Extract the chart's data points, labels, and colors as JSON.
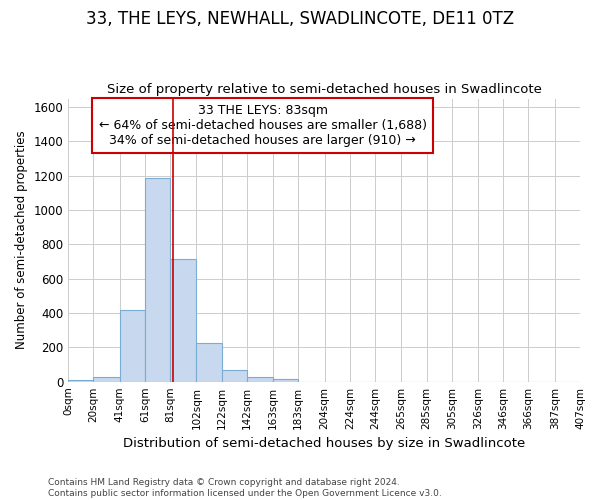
{
  "title": "33, THE LEYS, NEWHALL, SWADLINCOTE, DE11 0TZ",
  "subtitle": "Size of property relative to semi-detached houses in Swadlincote",
  "xlabel": "Distribution of semi-detached houses by size in Swadlincote",
  "ylabel": "Number of semi-detached properties",
  "footer_line1": "Contains HM Land Registry data © Crown copyright and database right 2024.",
  "footer_line2": "Contains public sector information licensed under the Open Government Licence v3.0.",
  "annotation_title": "33 THE LEYS: 83sqm",
  "annotation_line1": "← 64% of semi-detached houses are smaller (1,688)",
  "annotation_line2": "34% of semi-detached houses are larger (910) →",
  "bin_edges": [
    0,
    20,
    41,
    61,
    81,
    102,
    122,
    142,
    163,
    183,
    204,
    224,
    244,
    265,
    285,
    305,
    326,
    346,
    366,
    387,
    407
  ],
  "bin_labels": [
    "0sqm",
    "20sqm",
    "41sqm",
    "61sqm",
    "81sqm",
    "102sqm",
    "122sqm",
    "142sqm",
    "163sqm",
    "183sqm",
    "204sqm",
    "224sqm",
    "244sqm",
    "265sqm",
    "285sqm",
    "305sqm",
    "326sqm",
    "346sqm",
    "366sqm",
    "387sqm",
    "407sqm"
  ],
  "bar_heights": [
    10,
    28,
    420,
    1185,
    715,
    228,
    68,
    28,
    15,
    0,
    0,
    0,
    0,
    0,
    0,
    0,
    0,
    0,
    0,
    0
  ],
  "bar_color": "#c8d8ee",
  "bar_edge_color": "#7aadd4",
  "vline_color": "#cc0000",
  "vline_x": 83,
  "ylim": [
    0,
    1650
  ],
  "yticks": [
    0,
    200,
    400,
    600,
    800,
    1000,
    1200,
    1400,
    1600
  ],
  "bg_color": "#ffffff",
  "plot_bg_color": "#ffffff",
  "grid_color": "#cccccc",
  "title_fontsize": 12,
  "subtitle_fontsize": 10,
  "annotation_box_edge_color": "#cc0000",
  "annotation_fontsize": 9
}
